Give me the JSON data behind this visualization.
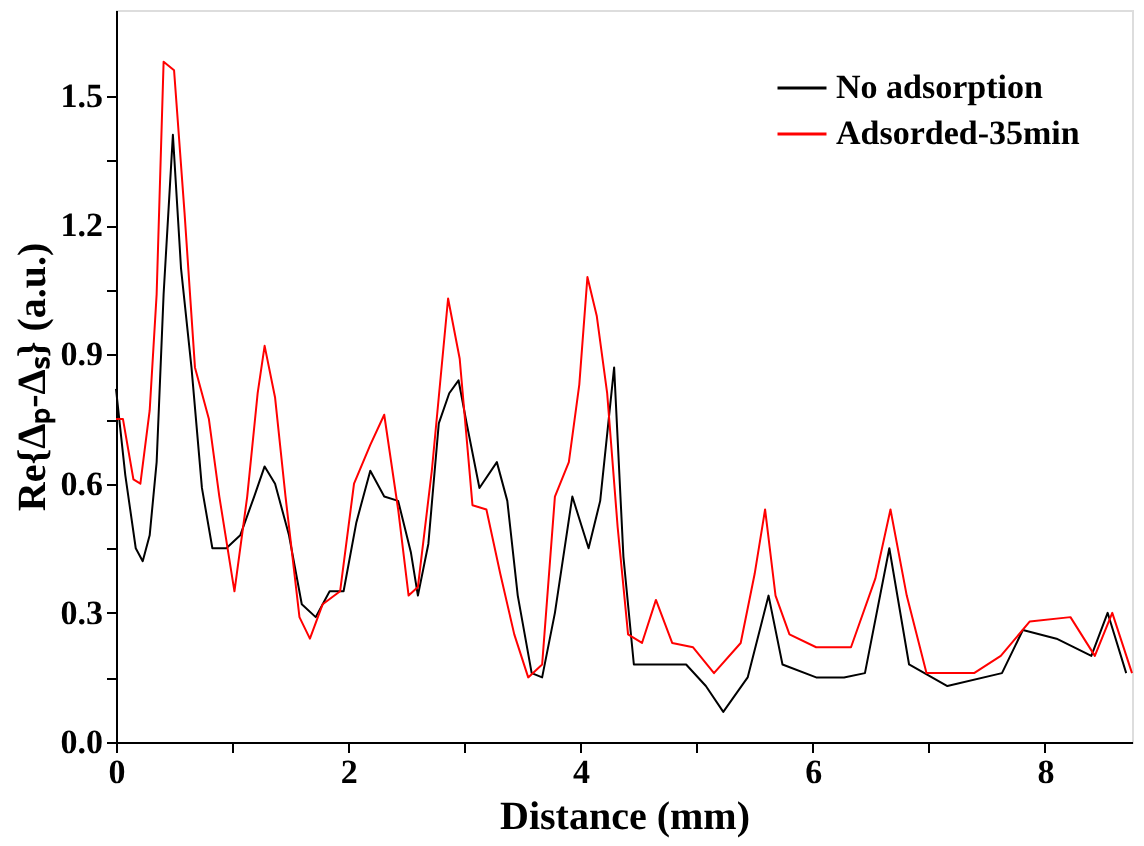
{
  "chart_data": {
    "type": "line",
    "xlabel": "Distance (mm)",
    "ylabel": "Re{Δₚ-Δₛ} (a.u.)",
    "xlim": [
      0,
      8.75
    ],
    "ylim": [
      0,
      1.7
    ],
    "xticks": [
      0,
      {
        "value": 1,
        "label": null
      },
      2,
      {
        "value": 3,
        "label": null
      },
      4,
      {
        "value": 5,
        "label": null
      },
      6,
      {
        "value": 7,
        "label": null
      },
      8
    ],
    "yticks": [
      {
        "value": 0,
        "label": "0.0"
      },
      {
        "value": 0.15,
        "label": null
      },
      {
        "value": 0.3,
        "label": "0.3"
      },
      {
        "value": 0.45,
        "label": null
      },
      {
        "value": 0.6,
        "label": "0.6"
      },
      {
        "value": 0.75,
        "label": null
      },
      {
        "value": 0.9,
        "label": "0.9"
      },
      {
        "value": 1.05,
        "label": null
      },
      {
        "value": 1.2,
        "label": "1.2"
      },
      {
        "value": 1.35,
        "label": null
      },
      {
        "value": 1.5,
        "label": "1.5"
      }
    ],
    "grid": false,
    "legend": "top right",
    "line_style": "solid",
    "marker": "none",
    "series": [
      {
        "name": "No adsorption",
        "color": "#000000",
        "x": [
          0,
          0.08,
          0.17,
          0.23,
          0.29,
          0.35,
          0.41,
          0.49,
          0.56,
          0.65,
          0.74,
          0.83,
          0.95,
          1.07,
          1.19,
          1.28,
          1.37,
          1.49,
          1.6,
          1.72,
          1.84,
          1.96,
          2.07,
          2.19,
          2.31,
          2.43,
          2.54,
          2.6,
          2.69,
          2.78,
          2.87,
          2.95,
          3.02,
          3.13,
          3.28,
          3.37,
          3.46,
          3.58,
          3.67,
          3.78,
          3.93,
          4.07,
          4.17,
          4.29,
          4.37,
          4.46,
          4.67,
          4.91,
          5.08,
          5.23,
          5.44,
          5.62,
          5.74,
          6.03,
          6.27,
          6.45,
          6.66,
          6.83,
          7.16,
          7.63,
          7.81,
          8.1,
          8.4,
          8.54,
          8.7
        ],
        "values": [
          0.82,
          0.62,
          0.45,
          0.42,
          0.48,
          0.65,
          1.04,
          1.41,
          1.1,
          0.87,
          0.59,
          0.45,
          0.45,
          0.48,
          0.57,
          0.64,
          0.6,
          0.48,
          0.32,
          0.29,
          0.35,
          0.35,
          0.51,
          0.63,
          0.57,
          0.56,
          0.44,
          0.34,
          0.46,
          0.74,
          0.81,
          0.84,
          0.74,
          0.59,
          0.65,
          0.56,
          0.34,
          0.16,
          0.15,
          0.3,
          0.57,
          0.45,
          0.56,
          0.87,
          0.43,
          0.18,
          0.18,
          0.18,
          0.13,
          0.07,
          0.15,
          0.34,
          0.18,
          0.15,
          0.15,
          0.16,
          0.45,
          0.18,
          0.13,
          0.16,
          0.26,
          0.24,
          0.2,
          0.3,
          0.16
        ]
      },
      {
        "name": "Adsorded-35min",
        "color": "#ff0000",
        "x": [
          0,
          0.06,
          0.15,
          0.21,
          0.29,
          0.35,
          0.41,
          0.5,
          0.59,
          0.68,
          0.8,
          0.89,
          1.02,
          1.13,
          1.22,
          1.28,
          1.37,
          1.46,
          1.58,
          1.67,
          1.78,
          1.93,
          2.05,
          2.19,
          2.31,
          2.43,
          2.52,
          2.6,
          2.72,
          2.86,
          2.96,
          3.07,
          3.19,
          3.31,
          3.43,
          3.55,
          3.67,
          3.78,
          3.9,
          3.99,
          4.06,
          4.14,
          4.23,
          4.32,
          4.41,
          4.53,
          4.65,
          4.79,
          4.97,
          5.15,
          5.38,
          5.5,
          5.59,
          5.68,
          5.8,
          6.03,
          6.33,
          6.54,
          6.67,
          6.81,
          6.98,
          7.39,
          7.62,
          7.87,
          8.22,
          8.43,
          8.58,
          8.75
        ],
        "values": [
          0.75,
          0.75,
          0.61,
          0.6,
          0.77,
          1.04,
          1.58,
          1.56,
          1.23,
          0.87,
          0.75,
          0.57,
          0.35,
          0.57,
          0.81,
          0.92,
          0.8,
          0.57,
          0.29,
          0.24,
          0.32,
          0.35,
          0.6,
          0.69,
          0.76,
          0.54,
          0.34,
          0.36,
          0.63,
          1.03,
          0.89,
          0.55,
          0.54,
          0.39,
          0.25,
          0.15,
          0.18,
          0.57,
          0.65,
          0.83,
          1.08,
          0.99,
          0.81,
          0.5,
          0.25,
          0.23,
          0.33,
          0.23,
          0.22,
          0.16,
          0.23,
          0.39,
          0.54,
          0.34,
          0.25,
          0.22,
          0.22,
          0.38,
          0.54,
          0.34,
          0.16,
          0.16,
          0.2,
          0.28,
          0.29,
          0.2,
          0.3,
          0.16
        ]
      }
    ]
  }
}
